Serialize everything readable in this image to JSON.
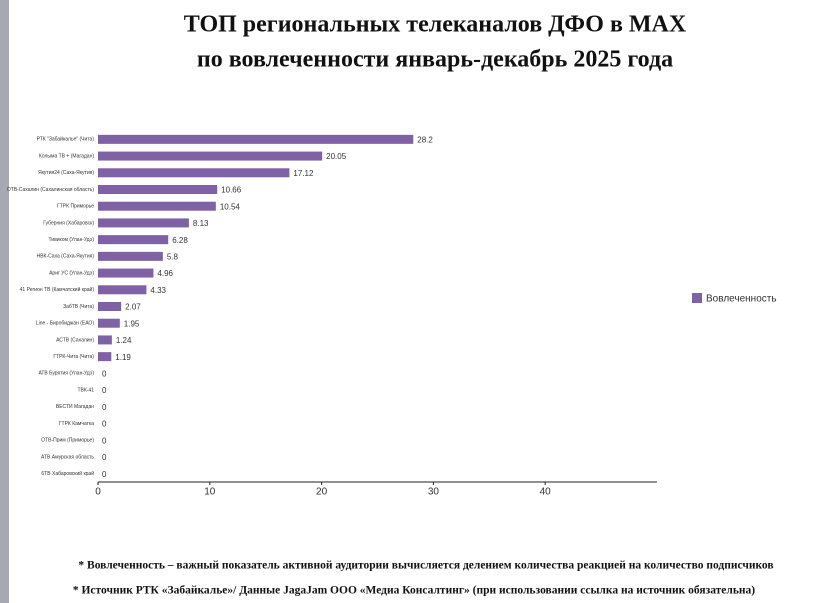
{
  "chart_data": {
    "type": "bar",
    "orientation": "horizontal",
    "title": [
      "ТОП региональных телеканалов ДФО в MAX",
      "по вовлеченности январь-декабрь 2025 года"
    ],
    "categories": [
      "РТК \"Забайкалье\" (Чита)",
      "Колыма ТВ + (Магадан)",
      "Якутия24 (Саха-Якутия)",
      "ОТВ-Сахалин (Сахалинская область)",
      "ГТРК Приморье",
      "Губерния (Хабаровск)",
      "Тивиком (Улан-Удэ)",
      "НВК-Саха (Саха-Якутия)",
      "Ариг УС (Улан-Удэ)",
      "41 Регион ТВ (Камчатский край)",
      "ЗабТВ (Чита)",
      "Line - Биробиджан (ЕАО)",
      "АСТВ (Сахалин)",
      "ГТРК-Чита (Чита)",
      "АТВ Бурятия (Улан-Удэ)",
      "ТВК-41",
      "ВЕСТИ Магадан",
      "ГТРК Камчатка",
      "ОТВ-Прим (Приморье)",
      "АТВ Амурская область",
      "6ТВ Хабаровский край"
    ],
    "series": [
      {
        "name": "Вовлеченность",
        "color": "#7f62a6",
        "values": [
          28.2,
          20.05,
          17.12,
          10.66,
          10.54,
          8.13,
          6.28,
          5.8,
          4.96,
          4.33,
          2.07,
          1.95,
          1.24,
          1.19,
          0,
          0,
          0,
          0,
          0,
          0,
          0
        ]
      }
    ],
    "xlim": [
      0,
      50
    ],
    "xticks": [
      0,
      10,
      20,
      30,
      40
    ],
    "legend": "right",
    "notes": [
      "* Вовлеченность –  важный показатель активной аудитории вычисляется делением количества реакцией на количество подписчиков",
      "* Источник РТК «Забайкалье»/ Данные JagaJam ООО «Медиа Консалтинг» (при использовании ссылка на источник обязательна)"
    ]
  }
}
